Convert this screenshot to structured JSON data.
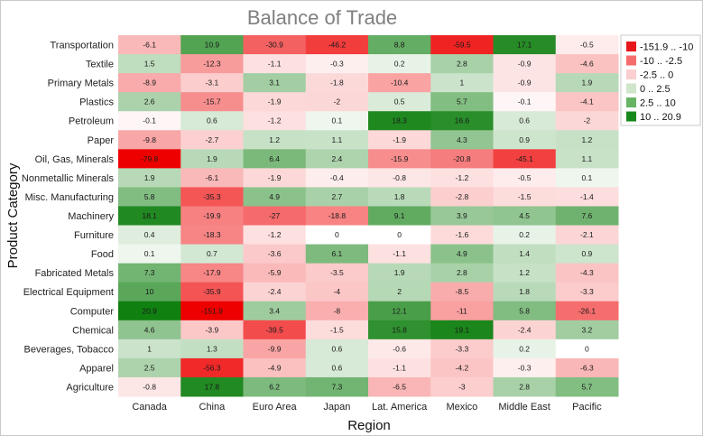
{
  "chart_data": {
    "type": "heatmap",
    "title": "Balance of Trade",
    "xlabel": "Region",
    "ylabel": "Product Category",
    "x_categories": [
      "Canada",
      "China",
      "Euro Area",
      "Japan",
      "Lat. America",
      "Mexico",
      "Middle East",
      "Pacific"
    ],
    "y_categories": [
      "Transportation",
      "Textile",
      "Primary Metals",
      "Plastics",
      "Petroleum",
      "Paper",
      "Oil, Gas, Minerals",
      "Nonmetallic Minerals",
      "Misc. Manufacturing",
      "Machinery",
      "Furniture",
      "Food",
      "Fabricated Metals",
      "Electrical Equipment",
      "Computer",
      "Chemical",
      "Beverages, Tobacco",
      "Apparel",
      "Agriculture"
    ],
    "values": [
      [
        "-6.1",
        "10.9",
        "-30.9",
        "-46.2",
        "8.8",
        "-59.5",
        "17.1",
        "-0.5"
      ],
      [
        "1.5",
        "-12.3",
        "-1.1",
        "-0.3",
        "0.2",
        "2.8",
        "-0.9",
        "-4.6"
      ],
      [
        "-8.9",
        "-3.1",
        "3.1",
        "-1.8",
        "-10.4",
        "1",
        "-0.9",
        "1.9"
      ],
      [
        "2.6",
        "-15.7",
        "-1.9",
        "-2",
        "0.5",
        "5.7",
        "-0.1",
        "-4.1"
      ],
      [
        "-0.1",
        "0.6",
        "-1.2",
        "0.1",
        "18.3",
        "16.6",
        "0.6",
        "-2"
      ],
      [
        "-9.8",
        "-2.7",
        "1.2",
        "1.1",
        "-1.9",
        "4.3",
        "0.9",
        "1.2"
      ],
      [
        "-79.8",
        "1.9",
        "6.4",
        "2.4",
        "-15.9",
        "-20.8",
        "-45.1",
        "1.1"
      ],
      [
        "1.9",
        "-6.1",
        "-1.9",
        "-0.4",
        "-0.8",
        "-1.2",
        "-0.5",
        "0.1"
      ],
      [
        "5.8",
        "-35.3",
        "4.9",
        "2.7",
        "1.8",
        "-2.8",
        "-1.5",
        "-1.4"
      ],
      [
        "18.1",
        "-19.9",
        "-27",
        "-18.8",
        "9.1",
        "3.9",
        "4.5",
        "7.6"
      ],
      [
        "0.4",
        "-18.3",
        "-1.2",
        "0",
        "0",
        "-1.6",
        "0.2",
        "-2.1"
      ],
      [
        "0.1",
        "0.7",
        "-3.6",
        "6.1",
        "-1.1",
        "4.9",
        "1.4",
        "0.9"
      ],
      [
        "7.3",
        "-17.9",
        "-5.9",
        "-3.5",
        "1.9",
        "2.8",
        "1.2",
        "-4.3"
      ],
      [
        "10",
        "-35.9",
        "-2.4",
        "-4",
        "2",
        "-8.5",
        "1.8",
        "-3.3"
      ],
      [
        "20.9",
        "-151.9",
        "3.4",
        "-8",
        "12.1",
        "-11",
        "5.8",
        "-26.1"
      ],
      [
        "4.6",
        "-3.9",
        "-39.5",
        "-1.5",
        "15.8",
        "19.1",
        "-2.4",
        "3.2"
      ],
      [
        "1",
        "1.3",
        "-9.9",
        "0.6",
        "-0.6",
        "-3.3",
        "0.2",
        "0"
      ],
      [
        "2.5",
        "-56.3",
        "-4.9",
        "0.6",
        "-1.1",
        "-4.2",
        "-0.3",
        "-6.3"
      ],
      [
        "-0.8",
        "17.8",
        "6.2",
        "7.3",
        "-6.5",
        "-3",
        "2.8",
        "5.7"
      ]
    ],
    "legend": {
      "position": "right",
      "ranges": [
        {
          "label": "-151.9 .. -10",
          "color": "#e8181a"
        },
        {
          "label": "-10 .. -2.5",
          "color": "#f56d6d"
        },
        {
          "label": "-2.5 .. 0",
          "color": "#fbcfcf"
        },
        {
          "label": "0 .. 2.5",
          "color": "#cfe6cb"
        },
        {
          "label": "2.5 .. 10",
          "color": "#67b464"
        },
        {
          "label": "10 .. 20.9",
          "color": "#17891b"
        }
      ]
    },
    "color_scale": {
      "min": -151.9,
      "max": 20.9,
      "neg_strong": "#ee0000",
      "pos_strong": "#108010",
      "neutral": "#ffffff"
    }
  }
}
